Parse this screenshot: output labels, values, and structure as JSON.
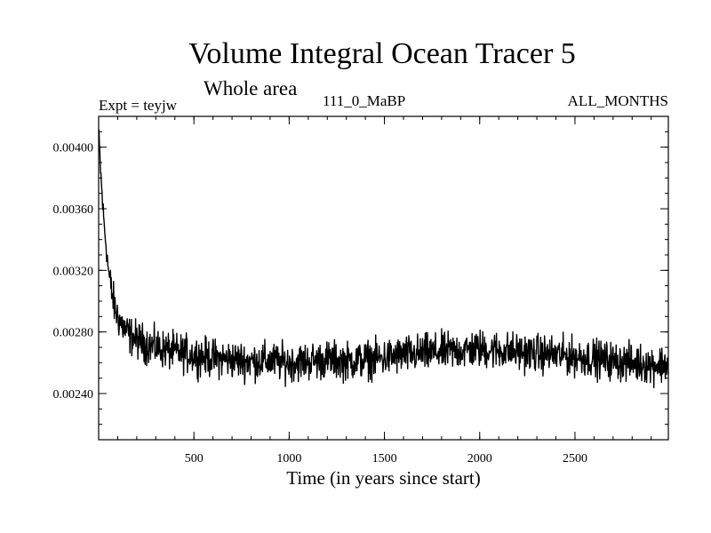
{
  "chart_data": {
    "type": "line",
    "title": "Volume Integral Ocean Tracer 5",
    "subtitle": "Whole area",
    "expt_label": "Expt = teyjw",
    "run_label": "111_0_MaBP",
    "months_label": "ALL_MONTHS",
    "xlabel": "Time (in years since start)",
    "ylabel": "",
    "xlim": [
      0,
      2990
    ],
    "ylim": [
      0.0021,
      0.0042
    ],
    "x_ticks": [
      {
        "value": 500,
        "label": "500"
      },
      {
        "value": 1000,
        "label": "1000"
      },
      {
        "value": 1500,
        "label": "1500"
      },
      {
        "value": 2000,
        "label": "2000"
      },
      {
        "value": 2500,
        "label": "2500"
      }
    ],
    "y_ticks": [
      {
        "value": 0.0024,
        "label": "0.00240"
      },
      {
        "value": 0.0028,
        "label": "0.00280"
      },
      {
        "value": 0.0032,
        "label": "0.00320"
      },
      {
        "value": 0.0036,
        "label": "0.00360"
      },
      {
        "value": 0.004,
        "label": "0.00400"
      }
    ],
    "x_minor_step": 100,
    "y_minor_step": 0.0001,
    "series": [
      {
        "name": "Volume Integral Ocean Tracer 5",
        "color": "#000000",
        "noise_amplitude": 0.00012,
        "x": [
          0,
          10,
          20,
          30,
          40,
          50,
          60,
          80,
          100,
          130,
          160,
          200,
          250,
          300,
          400,
          500,
          600,
          700,
          800,
          900,
          1000,
          1100,
          1200,
          1300,
          1400,
          1500,
          1600,
          1700,
          1800,
          1900,
          2000,
          2100,
          2200,
          2300,
          2400,
          2500,
          2600,
          2700,
          2800,
          2900,
          2990
        ],
        "values": [
          0.0041,
          0.00385,
          0.00365,
          0.00348,
          0.00335,
          0.00322,
          0.00312,
          0.00298,
          0.0029,
          0.00283,
          0.00278,
          0.00275,
          0.00272,
          0.0027,
          0.00267,
          0.00265,
          0.00263,
          0.00262,
          0.00261,
          0.00261,
          0.0026,
          0.00261,
          0.00262,
          0.00261,
          0.00262,
          0.00263,
          0.00265,
          0.00266,
          0.00267,
          0.00268,
          0.00269,
          0.00268,
          0.00267,
          0.00266,
          0.00265,
          0.00264,
          0.00263,
          0.00261,
          0.0026,
          0.00259,
          0.00259
        ]
      }
    ]
  }
}
